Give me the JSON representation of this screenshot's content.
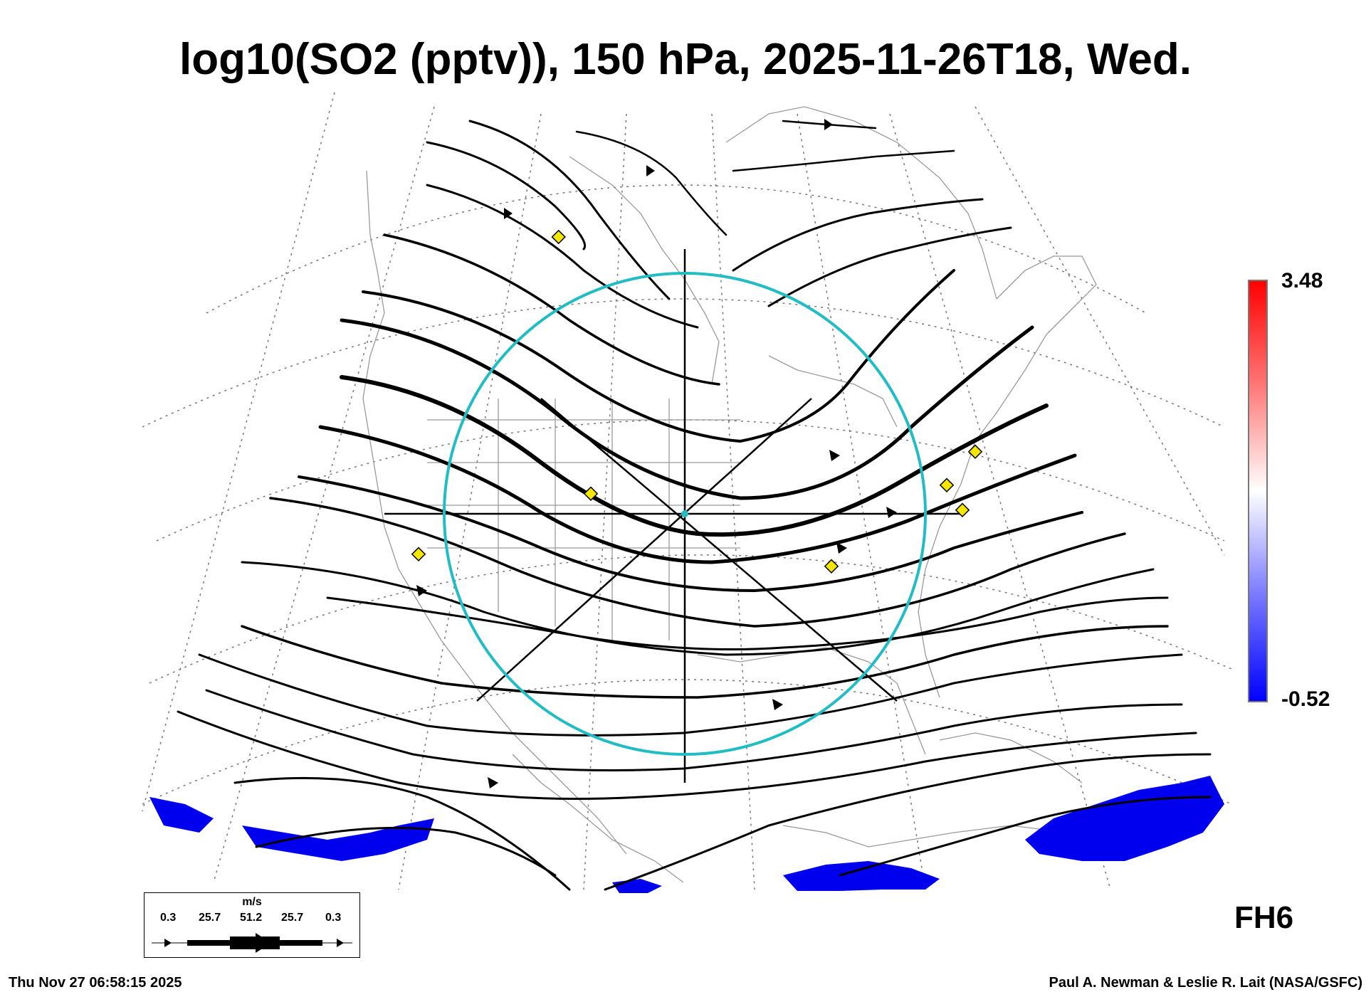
{
  "title": "log10(SO2 (pptv)), 150 hPa, 2025-11-26T18, Wed.",
  "colorbar": {
    "max": "3.48",
    "min": "-0.52",
    "colors": [
      "#ff0000",
      "#ffffff",
      "#0000ff"
    ]
  },
  "forecast_hour": "FH6",
  "legend": {
    "unit": "m/s",
    "values": [
      "0.3",
      "25.7",
      "51.2",
      "25.7",
      "0.3"
    ]
  },
  "footer": {
    "timestamp": "Thu Nov 27 06:58:15 2025",
    "credit": "Paul A. Newman & Leslie R. Lait (NASA/GSFC)"
  },
  "colors": {
    "streamline": "#000000",
    "ring": "#22bcc4",
    "marker": "#f5e600",
    "so2_low": "#0000ee",
    "coast": "#9a9a9a"
  }
}
